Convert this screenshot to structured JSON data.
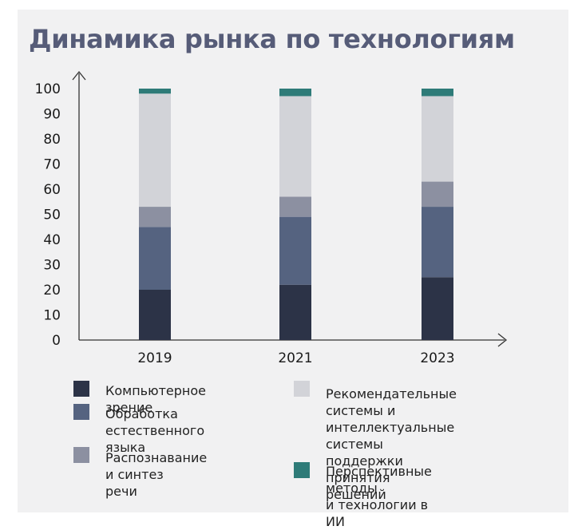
{
  "title": "Динамика рынка по технологиям",
  "chart_data": {
    "type": "bar",
    "stacked": true,
    "categories": [
      "2019",
      "2021",
      "2023"
    ],
    "ylim": [
      0,
      100
    ],
    "yticks": [
      0,
      10,
      20,
      30,
      40,
      50,
      60,
      70,
      80,
      90,
      100
    ],
    "series": [
      {
        "name": "Компьютерное зрение",
        "color": "#2c3347",
        "values": [
          20,
          22,
          25
        ]
      },
      {
        "name": "Обработка естественного\nязыка",
        "color": "#556380",
        "values": [
          25,
          27,
          28
        ]
      },
      {
        "name": "Распознавание и синтез\nречи",
        "color": "#8c90a1",
        "values": [
          8,
          8,
          10
        ]
      },
      {
        "name": "Рекомендательные\nсистемы и интеллектуальные\nсистемы поддержки принятия\nрешений",
        "color": "#d2d3d8",
        "values": [
          45,
          40,
          34
        ]
      },
      {
        "name": "Перспективные методы\nи технологии в ИИ",
        "color": "#2e7b78",
        "values": [
          2,
          3,
          3
        ]
      }
    ],
    "grid": false,
    "legend_position": "bottom"
  }
}
